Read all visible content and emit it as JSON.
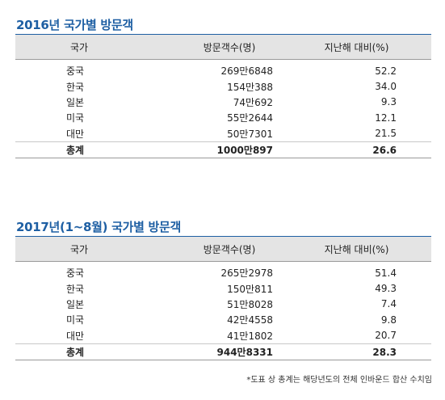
{
  "tables": [
    {
      "title": "2016년 국가별 방문객",
      "headers": [
        "국가",
        "방문객수(명)",
        "지난해 대비(%)"
      ],
      "rows": [
        [
          "중국",
          "269만6848",
          "52.2"
        ],
        [
          "한국",
          "154만388",
          "34.0"
        ],
        [
          "일본",
          "74만692",
          "9.3"
        ],
        [
          "미국",
          "55만2644",
          "12.1"
        ],
        [
          "대만",
          "50만7301",
          "21.5"
        ]
      ],
      "total": [
        "총계",
        "1000만897",
        "26.6"
      ]
    },
    {
      "title": "2017년(1~8월) 국가별 방문객",
      "headers": [
        "국가",
        "방문객수(명)",
        "지난해 대비(%)"
      ],
      "rows": [
        [
          "중국",
          "265만2978",
          "51.4"
        ],
        [
          "한국",
          "150만811",
          "49.3"
        ],
        [
          "일본",
          "51만8028",
          "7.4"
        ],
        [
          "미국",
          "42만4558",
          "9.8"
        ],
        [
          "대만",
          "41만1802",
          "20.7"
        ]
      ],
      "total": [
        "총계",
        "944만8331",
        "28.3"
      ]
    }
  ],
  "footnote": "*도표 상 총계는 해당년도의 전체 인바운드 합산 수치임"
}
